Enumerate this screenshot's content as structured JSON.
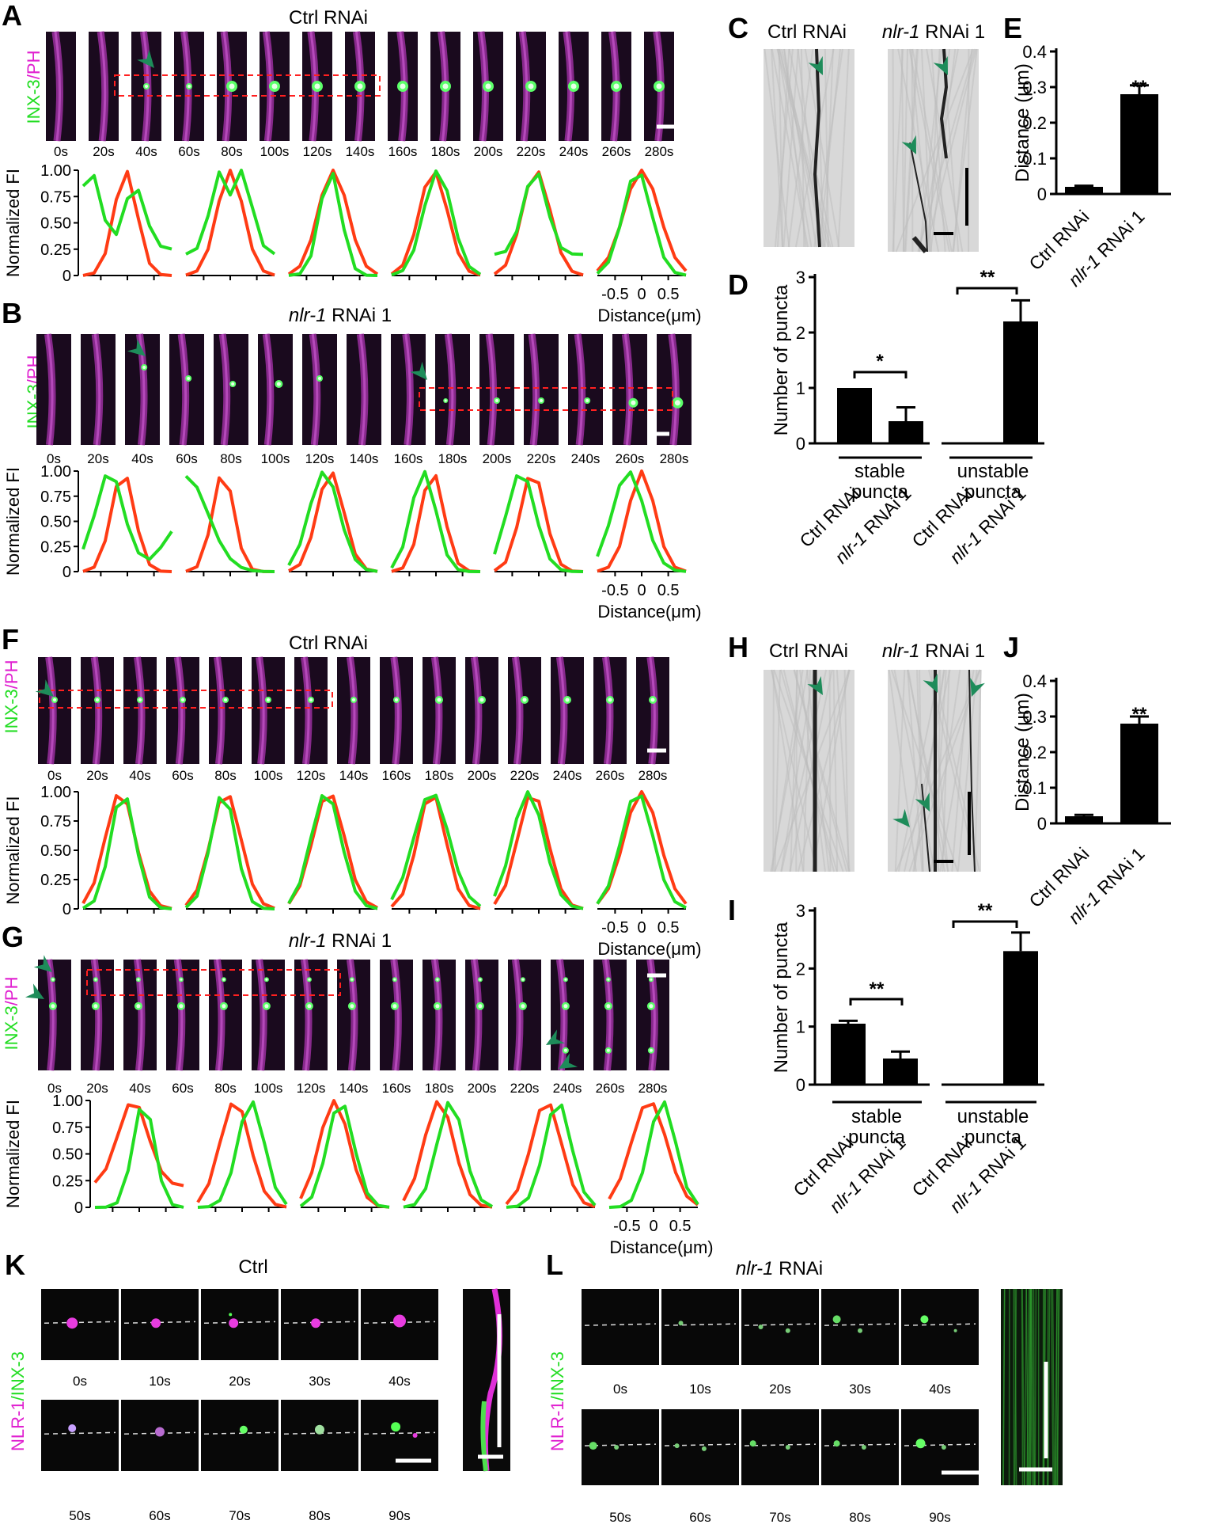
{
  "colors": {
    "green": "#22dd22",
    "red": "#ff3b14",
    "magenta": "#e020d0",
    "arrowhead": "#1e8c5a",
    "box": "#ff2020"
  },
  "panels": {
    "A": {
      "letter": "A",
      "title": "Ctrl RNAi"
    },
    "B": {
      "letter": "B",
      "title_italic": "nlr-1",
      "title_rest": " RNAi 1"
    },
    "C": {
      "letter": "C",
      "left_label": "Ctrl RNAi",
      "right_label_italic": "nlr-1",
      "right_label_rest": " RNAi 1"
    },
    "D": {
      "letter": "D"
    },
    "E": {
      "letter": "E"
    },
    "F": {
      "letter": "F",
      "title": "Ctrl RNAi"
    },
    "G": {
      "letter": "G",
      "title_italic": "nlr-1",
      "title_rest": " RNAi 1"
    },
    "H": {
      "letter": "H",
      "left_label": "Ctrl RNAi",
      "right_label_italic": "nlr-1",
      "right_label_rest": " RNAi 1"
    },
    "I": {
      "letter": "I"
    },
    "J": {
      "letter": "J"
    },
    "K": {
      "letter": "K",
      "title": "Ctrl"
    },
    "L": {
      "letter": "L",
      "title_italic": "nlr-1",
      "title_rest": " RNAi"
    }
  },
  "channel_labels": {
    "inx3": "INX-3",
    "slash": "/",
    "ph": "PH",
    "nlr1": "NLR-1",
    "slash2": "/INX-3"
  },
  "time_labels_long": [
    "0s",
    "20s",
    "40s",
    "60s",
    "80s",
    "100s",
    "120s",
    "140s",
    "160s",
    "180s",
    "200s",
    "220s",
    "240s",
    "260s",
    "280s"
  ],
  "time_labels_k_top": [
    "0s",
    "10s",
    "20s",
    "30s",
    "40s"
  ],
  "time_labels_k_bottom": [
    "50s",
    "60s",
    "70s",
    "80s",
    "90s"
  ],
  "profile_axis": {
    "ylabel": "Normalized FI",
    "yticks": [
      "1.00",
      "0.75",
      "0.50",
      "0.25",
      "0"
    ],
    "xticks": [
      "-0.5",
      "0",
      "0.5"
    ],
    "xlabel": "Distance(μm)"
  },
  "chart_data": [
    {
      "id": "E",
      "type": "bar",
      "categories": [
        "Ctrl RNAi",
        "nlr-1 RNAi 1"
      ],
      "values": [
        0.02,
        0.28
      ],
      "errors": [
        0.003,
        0.025
      ],
      "ylabel": "Distance (μm)",
      "ylim": [
        0,
        0.4
      ],
      "yticks": [
        "0",
        "0.1",
        "0.2",
        "0.3",
        "0.4"
      ],
      "annotation": "**"
    },
    {
      "id": "D",
      "type": "bar",
      "categories": [
        "Ctrl RNAi",
        "nlr-1 RNAi 1",
        "Ctrl RNAi",
        "nlr-1 RNAi 1"
      ],
      "values": [
        1.0,
        0.4,
        0,
        2.2
      ],
      "errors": [
        0,
        0.25,
        0,
        0.38
      ],
      "ylabel": "Number of puncta",
      "ylim": [
        0,
        3
      ],
      "yticks": [
        "0",
        "1",
        "2",
        "3"
      ],
      "groups": [
        "stable\npuncta",
        "unstable\npuncta"
      ],
      "significance": [
        "*",
        "**"
      ]
    },
    {
      "id": "J",
      "type": "bar",
      "categories": [
        "Ctrl RNAi",
        "nlr-1 RNAi 1"
      ],
      "values": [
        0.02,
        0.28
      ],
      "errors": [
        0.004,
        0.02
      ],
      "ylabel": "Distance (μm)",
      "ylim": [
        0,
        0.4
      ],
      "yticks": [
        "0",
        "0.1",
        "0.2",
        "0.3",
        "0.4"
      ],
      "annotation": "**"
    },
    {
      "id": "I",
      "type": "bar",
      "categories": [
        "Ctrl RNAi",
        "nlr-1 RNAi 1",
        "Ctrl RNAi",
        "nlr-1 RNAi 1"
      ],
      "values": [
        1.05,
        0.45,
        0,
        2.3
      ],
      "errors": [
        0.05,
        0.12,
        0,
        0.32
      ],
      "ylabel": "Number of puncta",
      "ylim": [
        0,
        3
      ],
      "yticks": [
        "0",
        "1",
        "2",
        "3"
      ],
      "groups": [
        "stable\npuncta",
        "unstable\npuncta"
      ],
      "significance": [
        "**",
        "**"
      ]
    }
  ]
}
